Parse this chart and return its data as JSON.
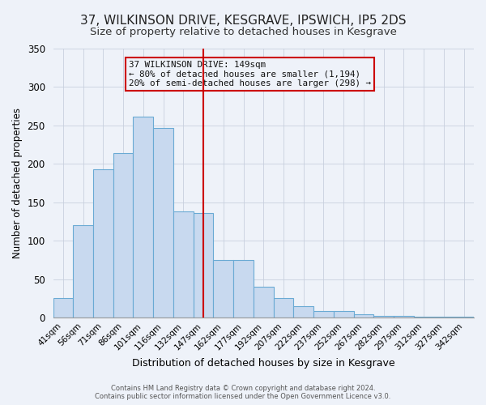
{
  "title": "37, WILKINSON DRIVE, KESGRAVE, IPSWICH, IP5 2DS",
  "subtitle": "Size of property relative to detached houses in Kesgrave",
  "xlabel": "Distribution of detached houses by size in Kesgrave",
  "ylabel": "Number of detached properties",
  "bar_labels": [
    "41sqm",
    "56sqm",
    "71sqm",
    "86sqm",
    "101sqm",
    "116sqm",
    "132sqm",
    "147sqm",
    "162sqm",
    "177sqm",
    "192sqm",
    "207sqm",
    "222sqm",
    "237sqm",
    "252sqm",
    "267sqm",
    "282sqm",
    "297sqm",
    "312sqm",
    "327sqm",
    "342sqm"
  ],
  "bar_heights": [
    25,
    120,
    193,
    214,
    261,
    247,
    138,
    136,
    75,
    75,
    40,
    25,
    15,
    8,
    8,
    4,
    2,
    2,
    1,
    1,
    1
  ],
  "bar_color": "#c8d9ef",
  "bar_edge_color": "#6aaad4",
  "vline_color": "#cc0000",
  "annotation_title": "37 WILKINSON DRIVE: 149sqm",
  "annotation_line2": "← 80% of detached houses are smaller (1,194)",
  "annotation_line3": "20% of semi-detached houses are larger (298) →",
  "annotation_box_color": "#cc0000",
  "ylim": [
    0,
    350
  ],
  "yticks": [
    0,
    50,
    100,
    150,
    200,
    250,
    300,
    350
  ],
  "footer_line1": "Contains HM Land Registry data © Crown copyright and database right 2024.",
  "footer_line2": "Contains public sector information licensed under the Open Government Licence v3.0.",
  "background_color": "#eef2f9",
  "title_fontsize": 11,
  "subtitle_fontsize": 9.5
}
